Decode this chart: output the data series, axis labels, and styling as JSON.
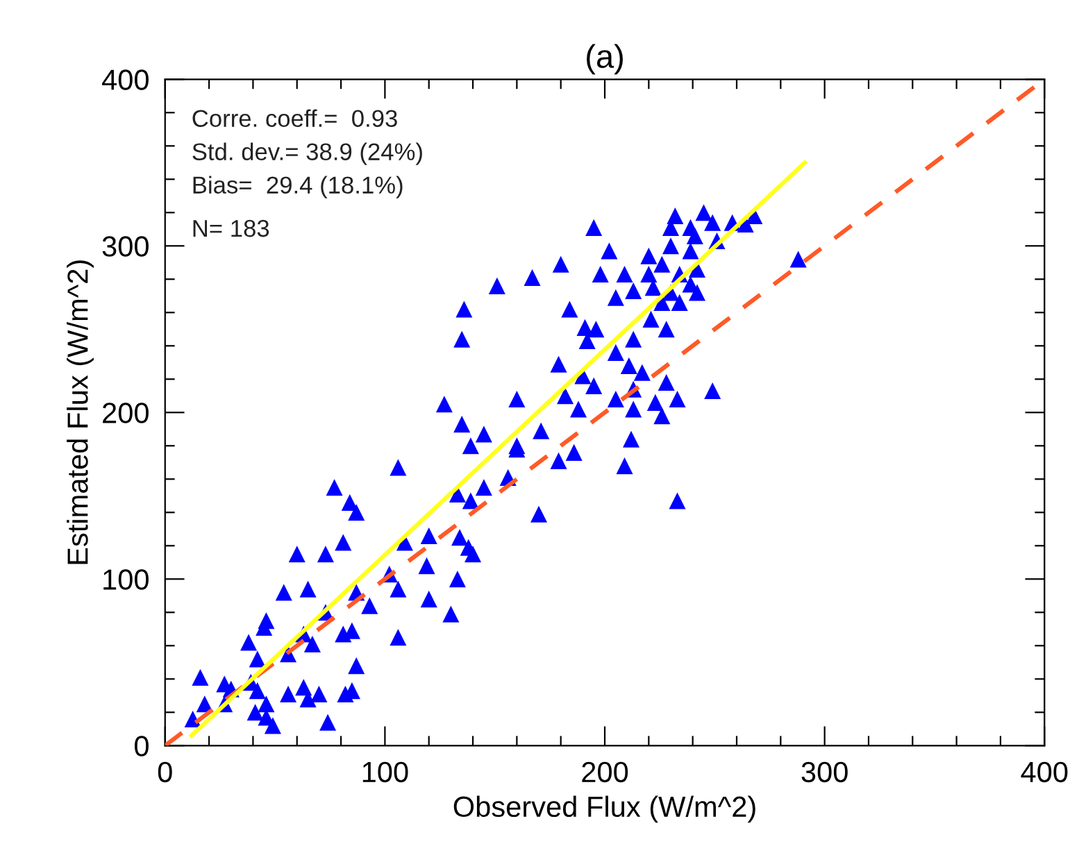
{
  "chart_data": {
    "type": "scatter",
    "title": "(a)",
    "xlabel": "Observed Flux (W/m^2)",
    "ylabel": "Estimated Flux (W/m^2)",
    "xlim": [
      0,
      400
    ],
    "ylim": [
      0,
      400
    ],
    "xticks": [
      0,
      {
        "value": 20,
        "label": null
      },
      {
        "value": 40,
        "label": null
      },
      {
        "value": 60,
        "label": null
      },
      {
        "value": 80,
        "label": null
      },
      100,
      {
        "value": 120,
        "label": null
      },
      {
        "value": 140,
        "label": null
      },
      {
        "value": 160,
        "label": null
      },
      {
        "value": 180,
        "label": null
      },
      200,
      {
        "value": 220,
        "label": null
      },
      {
        "value": 240,
        "label": null
      },
      {
        "value": 260,
        "label": null
      },
      {
        "value": 280,
        "label": null
      },
      300,
      {
        "value": 320,
        "label": null
      },
      {
        "value": 340,
        "label": null
      },
      {
        "value": 360,
        "label": null
      },
      {
        "value": 380,
        "label": null
      },
      400
    ],
    "yticks": [
      0,
      {
        "value": 20,
        "label": null
      },
      {
        "value": 40,
        "label": null
      },
      {
        "value": 60,
        "label": null
      },
      {
        "value": 80,
        "label": null
      },
      100,
      {
        "value": 120,
        "label": null
      },
      {
        "value": 140,
        "label": null
      },
      {
        "value": 160,
        "label": null
      },
      {
        "value": 180,
        "label": null
      },
      200,
      {
        "value": 220,
        "label": null
      },
      {
        "value": 240,
        "label": null
      },
      {
        "value": 260,
        "label": null
      },
      {
        "value": 280,
        "label": null
      },
      300,
      {
        "value": 320,
        "label": null
      },
      {
        "value": 340,
        "label": null
      },
      {
        "value": 360,
        "label": null
      },
      {
        "value": 380,
        "label": null
      },
      400
    ],
    "grid": false,
    "legend": false,
    "marker": "triangle",
    "annotations": [
      "Corre. coeff.=  0.93",
      "Std. dev.= 38.9 (24%)",
      "Bias=  29.4 (18.1%)",
      "N= 183"
    ],
    "series": [
      {
        "type": "line",
        "color": "#ff5a28",
        "line_style": "dashed",
        "marker": "none",
        "x": [
          0,
          400
        ],
        "values": [
          0,
          400
        ]
      },
      {
        "color": "#0000ff",
        "x": [
          12.6,
          16,
          18,
          27,
          30,
          27,
          39,
          42,
          41,
          46,
          46,
          49,
          56,
          63,
          70,
          65,
          74,
          82,
          85,
          87,
          38,
          42,
          45,
          46,
          56,
          54,
          65,
          60,
          73,
          81,
          77,
          84,
          87,
          63,
          67,
          73,
          81,
          85,
          87,
          93,
          106,
          102,
          106,
          106,
          120,
          109,
          119,
          120,
          130,
          133,
          134,
          138,
          140,
          133,
          139,
          145,
          156,
          160,
          135,
          139,
          145,
          195,
          180,
          198,
          167,
          151,
          136,
          135,
          184,
          191,
          196,
          192,
          179,
          205,
          213,
          221,
          228,
          190,
          195,
          211,
          217,
          228,
          249,
          233,
          213,
          205,
          223,
          213,
          226,
          188,
          182,
          160,
          171,
          160,
          212,
          186,
          179,
          209,
          233,
          170,
          127,
          202,
          209,
          213,
          205,
          220,
          222,
          232,
          245,
          239,
          249,
          258,
          264,
          268,
          230,
          239,
          242,
          239,
          230,
          242,
          234,
          226,
          234,
          226,
          251,
          220,
          288,
          230,
          241
        ],
        "values": [
          16,
          41,
          25,
          37,
          34,
          25,
          38,
          33,
          20,
          25,
          17,
          12,
          31,
          35,
          31,
          28,
          14,
          31,
          33,
          48,
          62,
          52,
          71,
          75,
          55,
          92,
          94,
          115,
          115,
          122,
          155,
          146,
          140,
          67,
          61,
          80,
          67,
          69,
          92,
          84,
          65,
          103,
          94,
          167,
          126,
          122,
          108,
          88,
          79,
          100,
          125,
          119,
          115,
          151,
          147,
          155,
          161,
          178,
          193,
          180,
          187,
          311,
          289,
          283,
          281,
          276,
          262,
          244,
          262,
          251,
          250,
          243,
          229,
          236,
          244,
          256,
          250,
          222,
          216,
          228,
          224,
          218,
          213,
          208,
          214,
          208,
          206,
          202,
          198,
          202,
          210,
          208,
          189,
          180,
          184,
          176,
          171,
          168,
          147,
          139,
          205,
          297,
          283,
          273,
          269,
          283,
          275,
          318,
          320,
          311,
          314,
          314,
          313,
          318,
          300,
          297,
          286,
          277,
          272,
          272,
          266,
          266,
          283,
          289,
          303,
          294,
          292,
          311,
          306
        ]
      },
      {
        "type": "line",
        "color": "#ffff1e",
        "line_style": "solid",
        "marker": "none",
        "x": [
          12,
          291
        ],
        "values": [
          6,
          350
        ]
      }
    ]
  }
}
